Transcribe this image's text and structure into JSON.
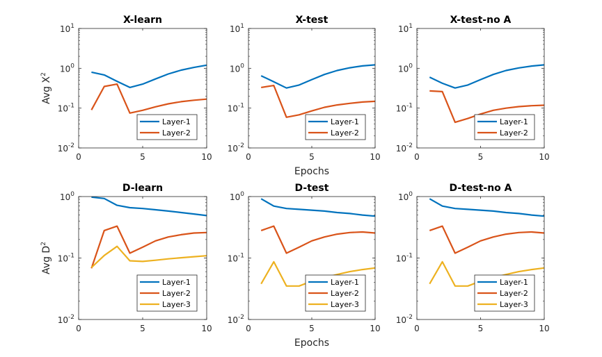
{
  "colors": {
    "layer1": "#0072BD",
    "layer2": "#D95319",
    "layer3": "#EDB120",
    "axis": "#262626"
  },
  "chart_data": [
    {
      "type": "line",
      "title": "X-learn",
      "xlabel": "",
      "ylabel": "Avg X",
      "ylabel_sup": "2",
      "yscale": "log",
      "xlim": [
        0,
        10
      ],
      "ylim": [
        0.01,
        10
      ],
      "xticks": [
        "0",
        "5",
        "10"
      ],
      "yticks": [
        {
          "base": "10",
          "exp": "1"
        },
        {
          "base": "10",
          "exp": "0"
        },
        {
          "base": "10",
          "exp": "-1"
        },
        {
          "base": "10",
          "exp": "-2"
        }
      ],
      "x": [
        1,
        2,
        3,
        4,
        5,
        6,
        7,
        8,
        9,
        10
      ],
      "series": [
        {
          "name": "Layer-1",
          "values": [
            0.8,
            0.68,
            0.47,
            0.33,
            0.4,
            0.54,
            0.72,
            0.9,
            1.05,
            1.2
          ]
        },
        {
          "name": "Layer-2",
          "values": [
            0.09,
            0.35,
            0.4,
            0.075,
            0.088,
            0.108,
            0.128,
            0.145,
            0.158,
            0.168
          ]
        }
      ],
      "legend": "bottom-right"
    },
    {
      "type": "line",
      "title": "X-test",
      "xlabel": "Epochs",
      "ylabel": "",
      "ylabel_sup": "",
      "yscale": "log",
      "xlim": [
        0,
        10
      ],
      "ylim": [
        0.01,
        10
      ],
      "xticks": [
        "0",
        "5",
        "10"
      ],
      "yticks": [
        {
          "base": "10",
          "exp": "1"
        },
        {
          "base": "10",
          "exp": "0"
        },
        {
          "base": "10",
          "exp": "-1"
        },
        {
          "base": "10",
          "exp": "-2"
        }
      ],
      "x": [
        1,
        2,
        3,
        4,
        5,
        6,
        7,
        8,
        9,
        10
      ],
      "series": [
        {
          "name": "Layer-1",
          "values": [
            0.65,
            0.46,
            0.32,
            0.38,
            0.52,
            0.7,
            0.88,
            1.03,
            1.15,
            1.22
          ]
        },
        {
          "name": "Layer-2",
          "values": [
            0.33,
            0.37,
            0.059,
            0.068,
            0.085,
            0.105,
            0.12,
            0.132,
            0.142,
            0.148
          ]
        }
      ],
      "legend": "bottom-right"
    },
    {
      "type": "line",
      "title": "X-test-no A",
      "xlabel": "",
      "ylabel": "",
      "ylabel_sup": "",
      "yscale": "log",
      "xlim": [
        0,
        10
      ],
      "ylim": [
        0.01,
        10
      ],
      "xticks": [
        "0",
        "5",
        "10"
      ],
      "yticks": [
        {
          "base": "10",
          "exp": "1"
        },
        {
          "base": "10",
          "exp": "0"
        },
        {
          "base": "10",
          "exp": "-1"
        },
        {
          "base": "10",
          "exp": "-2"
        }
      ],
      "x": [
        1,
        2,
        3,
        4,
        5,
        6,
        7,
        8,
        9,
        10
      ],
      "series": [
        {
          "name": "Layer-1",
          "values": [
            0.6,
            0.42,
            0.32,
            0.38,
            0.52,
            0.7,
            0.88,
            1.02,
            1.14,
            1.22
          ]
        },
        {
          "name": "Layer-2",
          "values": [
            0.27,
            0.26,
            0.044,
            0.055,
            0.071,
            0.088,
            0.1,
            0.109,
            0.115,
            0.118
          ]
        }
      ],
      "legend": "bottom-right"
    },
    {
      "type": "line",
      "title": "D-learn",
      "xlabel": "",
      "ylabel": "Avg D",
      "ylabel_sup": "2",
      "yscale": "log",
      "xlim": [
        0,
        10
      ],
      "ylim": [
        0.01,
        1
      ],
      "xticks": [
        "0",
        "5",
        "10"
      ],
      "yticks": [
        {
          "base": "10",
          "exp": "0"
        },
        {
          "base": "10",
          "exp": "-1"
        },
        {
          "base": "10",
          "exp": "-2"
        }
      ],
      "x": [
        1,
        2,
        3,
        4,
        5,
        6,
        7,
        8,
        9,
        10
      ],
      "series": [
        {
          "name": "Layer-1",
          "values": [
            0.98,
            0.93,
            0.72,
            0.66,
            0.64,
            0.61,
            0.58,
            0.55,
            0.52,
            0.49
          ]
        },
        {
          "name": "Layer-2",
          "values": [
            0.068,
            0.28,
            0.33,
            0.12,
            0.15,
            0.19,
            0.22,
            0.24,
            0.255,
            0.26
          ]
        },
        {
          "name": "Layer-3",
          "values": [
            0.07,
            0.11,
            0.155,
            0.09,
            0.088,
            0.092,
            0.097,
            0.101,
            0.105,
            0.109
          ]
        }
      ],
      "legend": "bottom-right"
    },
    {
      "type": "line",
      "title": "D-test",
      "xlabel": "Epochs",
      "ylabel": "",
      "ylabel_sup": "",
      "yscale": "log",
      "xlim": [
        0,
        10
      ],
      "ylim": [
        0.01,
        1
      ],
      "xticks": [
        "0",
        "5",
        "10"
      ],
      "yticks": [
        {
          "base": "10",
          "exp": "0"
        },
        {
          "base": "10",
          "exp": "-1"
        },
        {
          "base": "10",
          "exp": "-2"
        }
      ],
      "x": [
        1,
        2,
        3,
        4,
        5,
        6,
        7,
        8,
        9,
        10
      ],
      "series": [
        {
          "name": "Layer-1",
          "values": [
            0.92,
            0.7,
            0.64,
            0.62,
            0.6,
            0.58,
            0.55,
            0.53,
            0.5,
            0.48
          ]
        },
        {
          "name": "Layer-2",
          "values": [
            0.28,
            0.33,
            0.12,
            0.15,
            0.19,
            0.22,
            0.245,
            0.26,
            0.265,
            0.255
          ]
        },
        {
          "name": "Layer-3",
          "values": [
            0.038,
            0.087,
            0.035,
            0.035,
            0.042,
            0.048,
            0.054,
            0.06,
            0.065,
            0.069
          ]
        }
      ],
      "legend": "bottom-right"
    },
    {
      "type": "line",
      "title": "D-test-no A",
      "xlabel": "",
      "ylabel": "",
      "ylabel_sup": "",
      "yscale": "log",
      "xlim": [
        0,
        10
      ],
      "ylim": [
        0.01,
        1
      ],
      "xticks": [
        "0",
        "5",
        "10"
      ],
      "yticks": [
        {
          "base": "10",
          "exp": "0"
        },
        {
          "base": "10",
          "exp": "-1"
        },
        {
          "base": "10",
          "exp": "-2"
        }
      ],
      "x": [
        1,
        2,
        3,
        4,
        5,
        6,
        7,
        8,
        9,
        10
      ],
      "series": [
        {
          "name": "Layer-1",
          "values": [
            0.92,
            0.7,
            0.64,
            0.62,
            0.6,
            0.58,
            0.55,
            0.53,
            0.5,
            0.48
          ]
        },
        {
          "name": "Layer-2",
          "values": [
            0.28,
            0.33,
            0.12,
            0.15,
            0.19,
            0.22,
            0.245,
            0.26,
            0.265,
            0.255
          ]
        },
        {
          "name": "Layer-3",
          "values": [
            0.038,
            0.087,
            0.035,
            0.035,
            0.042,
            0.048,
            0.054,
            0.06,
            0.065,
            0.069
          ]
        }
      ],
      "legend": "bottom-right"
    }
  ]
}
